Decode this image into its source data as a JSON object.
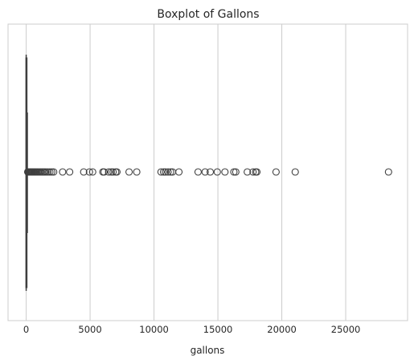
{
  "chart_data": {
    "type": "boxplot",
    "orientation": "horizontal",
    "title": "Boxplot of Gallons",
    "xlabel": "gallons",
    "ylabel": "",
    "xlim": [
      -1420,
      29840
    ],
    "xticks": [
      0,
      5000,
      10000,
      15000,
      20000,
      25000
    ],
    "xtick_labels": [
      "0",
      "5000",
      "10000",
      "15000",
      "20000",
      "25000"
    ],
    "grid": "x",
    "box": {
      "min": 0,
      "q1": 5,
      "median": 15,
      "q3": 40,
      "whisker_high": 100
    },
    "outliers": [
      120,
      150,
      180,
      220,
      260,
      300,
      350,
      400,
      450,
      500,
      560,
      620,
      700,
      780,
      860,
      950,
      1050,
      1150,
      1250,
      1350,
      1450,
      1550,
      1700,
      1850,
      2000,
      2150,
      2850,
      3400,
      4500,
      4950,
      5200,
      6000,
      6100,
      6450,
      6650,
      6800,
      7000,
      7100,
      8050,
      8650,
      10550,
      10750,
      10900,
      11100,
      11300,
      11450,
      11950,
      13450,
      14000,
      14400,
      14950,
      15550,
      16250,
      16400,
      17300,
      17750,
      17950,
      18050,
      19550,
      21050,
      28350
    ]
  }
}
